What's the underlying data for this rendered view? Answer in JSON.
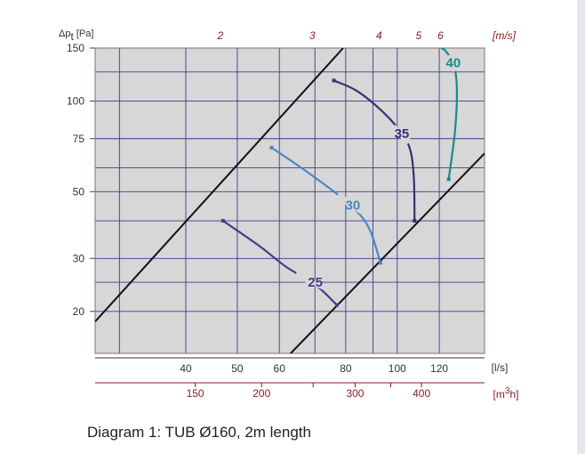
{
  "caption": "Diagram 1: TUB Ø160, 2m length",
  "colors": {
    "background": "#d7d7d7",
    "grid": "#3a3d8f",
    "top_axis": "#8a1c1c",
    "bottom_axis2": "#8a1c1c",
    "system_lines": "#111111"
  },
  "chart_data": {
    "type": "line",
    "scale": "log-log",
    "ylabel": "Δp_t [Pa]",
    "ylim": [
      14.5,
      150
    ],
    "y_ticks": [
      20,
      30,
      50,
      75,
      100,
      150
    ],
    "y_grid": [
      20,
      25,
      30,
      40,
      50,
      60,
      75,
      100,
      125,
      150
    ],
    "x_axis_ls": {
      "label": "[l/s]",
      "range": [
        27,
        146
      ],
      "ticks": [
        40,
        50,
        60,
        80,
        100,
        120
      ],
      "grid": [
        30,
        40,
        50,
        60,
        70,
        80,
        90,
        100,
        120
      ]
    },
    "x_axis_m3h": {
      "label": "[m³h]",
      "ticks": [
        150,
        200,
        300,
        400
      ],
      "minor_ticks": [
        250,
        350
      ]
    },
    "x_axis_velocity": {
      "label": "[m/s]",
      "ticks": [
        2,
        3,
        4,
        5,
        6
      ]
    },
    "system_lines": [
      {
        "points": [
          [
            27,
            18.5
          ],
          [
            79.1,
            150
          ]
        ]
      },
      {
        "points": [
          [
            63,
            14.5
          ],
          [
            146,
            67
          ]
        ]
      }
    ],
    "series": [
      {
        "name": "25",
        "color": "#463c85",
        "label_at": [
          70.1,
          25
        ],
        "label_gap": [
          [
            64.4,
            26.5
          ],
          [
            75,
            23.6
          ]
        ],
        "points": [
          [
            47,
            40
          ],
          [
            55,
            33
          ],
          [
            62,
            28
          ],
          [
            70,
            24.6
          ],
          [
            77,
            21
          ]
        ]
      },
      {
        "name": "30",
        "color": "#4a87c6",
        "label_at": [
          82.5,
          45
        ],
        "label_gap": [
          [
            77.2,
            48.6
          ],
          [
            86.4,
            42.7
          ]
        ],
        "points": [
          [
            58,
            70
          ],
          [
            66,
            60
          ],
          [
            76,
            50
          ],
          [
            84,
            43
          ],
          [
            89,
            37
          ],
          [
            93,
            29
          ]
        ]
      },
      {
        "name": "35",
        "color": "#3a2d75",
        "label_at": [
          102,
          78
        ],
        "label_gap": [
          [
            98.3,
            82.1
          ],
          [
            105.3,
            72.9
          ]
        ],
        "points": [
          [
            76,
            117
          ],
          [
            84,
            108
          ],
          [
            94,
            92
          ],
          [
            102,
            78
          ],
          [
            106,
            68
          ],
          [
            107.5,
            55
          ],
          [
            107.8,
            40
          ]
        ]
      },
      {
        "name": "40",
        "color": "#1a8a8a",
        "label_at": [
          127.5,
          134
        ],
        "label_gap": [
          [
            125,
            142
          ],
          [
            128.9,
            126
          ]
        ],
        "points": [
          [
            122,
            150
          ],
          [
            127.5,
            134
          ],
          [
            129.5,
            110
          ],
          [
            128.5,
            80
          ],
          [
            125,
            55
          ]
        ]
      }
    ]
  }
}
